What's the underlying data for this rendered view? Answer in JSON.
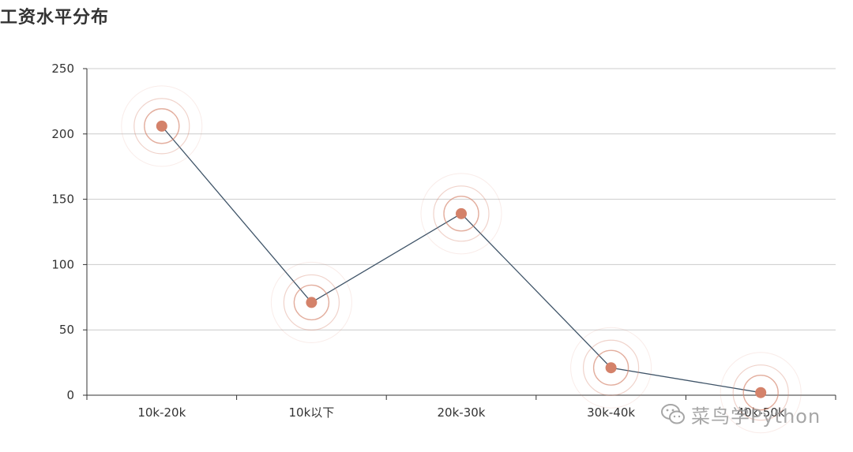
{
  "chart_data": {
    "type": "line",
    "title": "工资水平分布",
    "categories": [
      "10k-20k",
      "10k以下",
      "20k-30k",
      "30k-40k",
      "40k-50k"
    ],
    "values": [
      206,
      71,
      139,
      21,
      2
    ],
    "ylim": [
      0,
      250
    ],
    "yticks": [
      0,
      50,
      100,
      150,
      200,
      250
    ],
    "grid": true,
    "line_color": "#3f5468",
    "marker_color": "#d4826a",
    "ripple_effect": true
  },
  "watermark": {
    "text": "菜鸟学Python",
    "icon": "wechat-icon"
  }
}
